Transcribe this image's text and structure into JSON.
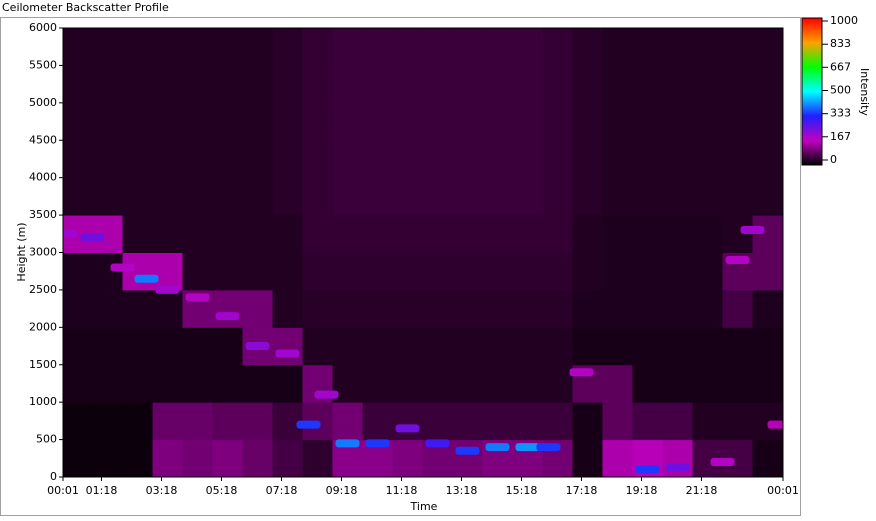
{
  "chart_data": {
    "type": "heatmap",
    "title": "Ceilometer Backscatter Profile",
    "xlabel": "Time",
    "ylabel": "Height (m)",
    "colorbar_label": "Intensity",
    "xlim": [
      0.0167,
      24.0167
    ],
    "xticks": [
      {
        "value": 0.0167,
        "label": "00:01"
      },
      {
        "value": 1.3,
        "label": "01:18"
      },
      {
        "value": 3.3,
        "label": "03:18"
      },
      {
        "value": 5.3,
        "label": "05:18"
      },
      {
        "value": 7.3,
        "label": "07:18"
      },
      {
        "value": 9.3,
        "label": "09:18"
      },
      {
        "value": 11.3,
        "label": "11:18"
      },
      {
        "value": 13.3,
        "label": "13:18"
      },
      {
        "value": 15.3,
        "label": "15:18"
      },
      {
        "value": 17.3,
        "label": "17:18"
      },
      {
        "value": 19.3,
        "label": "19:18"
      },
      {
        "value": 21.3,
        "label": "21:18"
      },
      {
        "value": 24.0167,
        "label": "00:01"
      }
    ],
    "ylim": [
      0,
      6000
    ],
    "yticks": [
      0,
      500,
      1000,
      1500,
      2000,
      2500,
      3000,
      3500,
      4000,
      4500,
      5000,
      5500,
      6000
    ],
    "zlim": [
      0,
      1000
    ],
    "zticks": [
      0,
      167,
      333,
      500,
      667,
      833,
      1000
    ],
    "colorscale": [
      [
        0,
        "#000000"
      ],
      [
        167,
        "#c000c0"
      ],
      [
        333,
        "#2020ff"
      ],
      [
        500,
        "#00ffff"
      ],
      [
        667,
        "#00ff00"
      ],
      [
        833,
        "#ffa000"
      ],
      [
        1000,
        "#ff0000"
      ]
    ],
    "xbins": [
      0,
      1,
      2,
      3,
      4,
      5,
      6,
      7,
      8,
      9,
      10,
      11,
      12,
      13,
      14,
      15,
      16,
      17,
      18,
      19,
      20,
      21,
      22,
      23,
      24
    ],
    "ybins": [
      0,
      500,
      1000,
      1500,
      2000,
      2500,
      3000,
      3500,
      4000,
      4500,
      5000,
      5500,
      6000
    ],
    "z": [
      [
        10,
        10,
        10,
        110,
        100,
        110,
        90,
        60,
        40,
        120,
        120,
        110,
        100,
        100,
        110,
        110,
        100,
        20,
        150,
        160,
        150,
        60,
        60,
        20
      ],
      [
        10,
        10,
        10,
        90,
        90,
        80,
        80,
        50,
        80,
        100,
        50,
        50,
        50,
        50,
        50,
        50,
        50,
        20,
        80,
        60,
        60,
        30,
        30,
        30
      ],
      [
        20,
        20,
        20,
        20,
        20,
        20,
        20,
        20,
        100,
        30,
        30,
        30,
        30,
        30,
        30,
        30,
        30,
        80,
        80,
        20,
        20,
        20,
        20,
        20
      ],
      [
        20,
        20,
        20,
        20,
        20,
        20,
        100,
        100,
        30,
        30,
        30,
        30,
        30,
        30,
        30,
        30,
        30,
        20,
        20,
        20,
        20,
        20,
        20,
        20
      ],
      [
        25,
        25,
        25,
        25,
        100,
        100,
        100,
        30,
        35,
        35,
        35,
        35,
        35,
        35,
        35,
        35,
        35,
        25,
        25,
        25,
        25,
        25,
        60,
        25
      ],
      [
        25,
        25,
        150,
        150,
        30,
        30,
        30,
        30,
        40,
        40,
        40,
        40,
        40,
        40,
        40,
        40,
        40,
        30,
        25,
        25,
        25,
        25,
        80,
        80
      ],
      [
        150,
        150,
        30,
        30,
        30,
        30,
        30,
        30,
        45,
        45,
        45,
        45,
        45,
        45,
        45,
        45,
        45,
        30,
        25,
        25,
        25,
        25,
        30,
        80
      ],
      [
        30,
        30,
        30,
        30,
        30,
        30,
        30,
        35,
        45,
        50,
        50,
        50,
        50,
        50,
        50,
        50,
        45,
        35,
        30,
        30,
        30,
        30,
        30,
        30
      ],
      [
        30,
        30,
        30,
        30,
        30,
        30,
        30,
        35,
        45,
        50,
        50,
        50,
        50,
        50,
        50,
        50,
        45,
        35,
        30,
        30,
        30,
        30,
        30,
        30
      ],
      [
        30,
        30,
        30,
        30,
        30,
        30,
        30,
        35,
        45,
        50,
        50,
        50,
        50,
        50,
        50,
        50,
        45,
        35,
        30,
        30,
        30,
        30,
        30,
        30
      ],
      [
        30,
        30,
        30,
        30,
        30,
        30,
        30,
        35,
        45,
        50,
        50,
        50,
        50,
        50,
        50,
        50,
        45,
        35,
        30,
        30,
        30,
        30,
        30,
        30
      ],
      [
        30,
        30,
        30,
        30,
        30,
        30,
        30,
        35,
        45,
        50,
        50,
        50,
        50,
        50,
        50,
        50,
        45,
        35,
        30,
        30,
        30,
        30,
        30,
        30
      ]
    ],
    "layer": {
      "x": [
        0.1,
        1,
        2,
        2.8,
        3.5,
        4.5,
        5.5,
        6.5,
        7.5,
        8.2,
        8.8,
        9.5,
        10.5,
        11.5,
        12.5,
        13.5,
        14.5,
        15.5,
        16.2,
        17.3,
        19.5,
        20.5,
        22,
        22.5,
        23,
        23.9
      ],
      "y": [
        3250,
        3200,
        2800,
        2650,
        2500,
        2400,
        2150,
        1750,
        1650,
        700,
        1100,
        450,
        450,
        650,
        450,
        350,
        400,
        400,
        400,
        1400,
        100,
        130,
        200,
        2900,
        3300,
        700
      ],
      "values": [
        200,
        250,
        180,
        400,
        200,
        180,
        200,
        220,
        200,
        350,
        200,
        400,
        350,
        250,
        300,
        350,
        400,
        420,
        350,
        180,
        350,
        250,
        180,
        180,
        200,
        160
      ]
    }
  }
}
